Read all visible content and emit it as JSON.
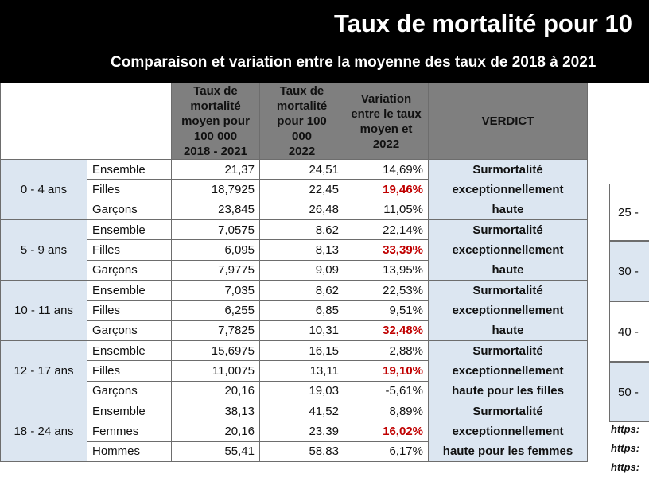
{
  "banner": {
    "title": "Taux de mortalité pour 10",
    "subtitle": "Comparaison et variation entre la moyenne des taux de 2018 à 2021"
  },
  "headers": {
    "moyen": [
      "Taux de",
      "mortalité",
      "moyen pour",
      "100 000",
      "2018 - 2021"
    ],
    "taux2022": [
      "Taux de",
      "mortalité",
      "pour 100",
      "000",
      "2022"
    ],
    "variation": [
      "Variation",
      "entre le taux",
      "moyen et",
      "2022"
    ],
    "verdict": "VERDICT"
  },
  "groups": [
    {
      "age": "0 - 4 ans",
      "verdict": [
        "Surmortalité",
        "exceptionnellement",
        "haute"
      ],
      "rows": [
        {
          "label": "Ensemble",
          "moyen": "21,37",
          "v2022": "24,51",
          "variation": "14,69%",
          "highlight": false
        },
        {
          "label": "Filles",
          "moyen": "18,7925",
          "v2022": "22,45",
          "variation": "19,46%",
          "highlight": true
        },
        {
          "label": "Garçons",
          "moyen": "23,845",
          "v2022": "26,48",
          "variation": "11,05%",
          "highlight": false
        }
      ]
    },
    {
      "age": "5 - 9 ans",
      "verdict": [
        "Surmortalité",
        "exceptionnellement",
        "haute"
      ],
      "rows": [
        {
          "label": "Ensemble",
          "moyen": "7,0575",
          "v2022": "8,62",
          "variation": "22,14%",
          "highlight": false
        },
        {
          "label": "Filles",
          "moyen": "6,095",
          "v2022": "8,13",
          "variation": "33,39%",
          "highlight": true
        },
        {
          "label": "Garçons",
          "moyen": "7,9775",
          "v2022": "9,09",
          "variation": "13,95%",
          "highlight": false
        }
      ]
    },
    {
      "age": "10 - 11 ans",
      "verdict": [
        "Surmortalité",
        "exceptionnellement",
        "haute"
      ],
      "rows": [
        {
          "label": "Ensemble",
          "moyen": "7,035",
          "v2022": "8,62",
          "variation": "22,53%",
          "highlight": false
        },
        {
          "label": "Filles",
          "moyen": "6,255",
          "v2022": "6,85",
          "variation": "9,51%",
          "highlight": false
        },
        {
          "label": "Garçons",
          "moyen": "7,7825",
          "v2022": "10,31",
          "variation": "32,48%",
          "highlight": true
        }
      ]
    },
    {
      "age": "12 - 17 ans",
      "verdict": [
        "Surmortalité",
        "exceptionnellement",
        "haute pour les filles"
      ],
      "rows": [
        {
          "label": "Ensemble",
          "moyen": "15,6975",
          "v2022": "16,15",
          "variation": "2,88%",
          "highlight": false
        },
        {
          "label": "Filles",
          "moyen": "11,0075",
          "v2022": "13,11",
          "variation": "19,10%",
          "highlight": true
        },
        {
          "label": "Garçons",
          "moyen": "20,16",
          "v2022": "19,03",
          "variation": "-5,61%",
          "highlight": false
        }
      ]
    },
    {
      "age": "18 - 24 ans",
      "verdict": [
        "Surmortalité",
        "exceptionnellement",
        "haute pour les femmes"
      ],
      "rows": [
        {
          "label": "Ensemble",
          "moyen": "38,13",
          "v2022": "41,52",
          "variation": "8,89%",
          "highlight": false
        },
        {
          "label": "Femmes",
          "moyen": "20,16",
          "v2022": "23,39",
          "variation": "16,02%",
          "highlight": true
        },
        {
          "label": "Hommes",
          "moyen": "55,41",
          "v2022": "58,83",
          "variation": "6,17%",
          "highlight": false
        }
      ]
    }
  ],
  "side_labels": [
    "25 -",
    "30 -",
    "40 -",
    "50 -"
  ],
  "side_links": [
    "https:",
    "https:",
    "https:"
  ]
}
